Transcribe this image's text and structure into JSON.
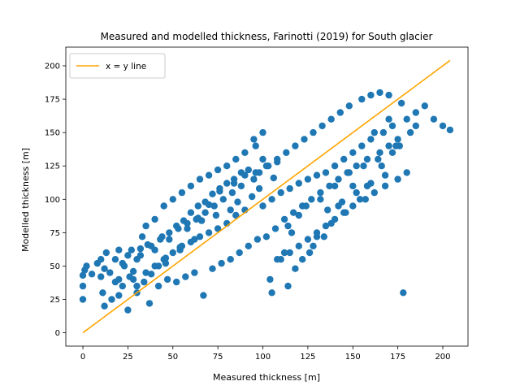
{
  "chart_data": {
    "type": "scatter",
    "title": "Measured and modelled thickness, Farinotti (2019) for South glacier",
    "xlabel": "Measured thickness [m]",
    "ylabel": "Modelled thickness [m]",
    "xlim": [
      -9.5,
      214
    ],
    "ylim": [
      -10,
      214
    ],
    "xticks": [
      0,
      25,
      50,
      75,
      100,
      125,
      150,
      175,
      200
    ],
    "yticks": [
      0,
      25,
      50,
      75,
      100,
      125,
      150,
      175,
      200
    ],
    "legend": {
      "placement": "top-left",
      "label": "x = y line"
    },
    "colors": {
      "points": "#1f77b4",
      "line": "#ffa500"
    },
    "series": [
      {
        "kind": "line",
        "x": [
          0,
          204
        ],
        "y": [
          0,
          204
        ]
      },
      {
        "kind": "scatter",
        "x": [
          0,
          0,
          0,
          1,
          2,
          5,
          8,
          10,
          10,
          11,
          12,
          13,
          15,
          16,
          18,
          20,
          20,
          22,
          23,
          25,
          25,
          27,
          28,
          30,
          30,
          32,
          33,
          35,
          35,
          37,
          38,
          40,
          40,
          42,
          43,
          45,
          45,
          47,
          48,
          50,
          50,
          52,
          53,
          55,
          55,
          57,
          58,
          60,
          60,
          62,
          63,
          65,
          65,
          67,
          68,
          70,
          70,
          72,
          73,
          75,
          75,
          77,
          78,
          80,
          80,
          82,
          83,
          85,
          85,
          87,
          88,
          90,
          90,
          92,
          95,
          95,
          97,
          98,
          100,
          100,
          102,
          103,
          105,
          105,
          107,
          108,
          110,
          110,
          112,
          113,
          115,
          115,
          117,
          118,
          120,
          120,
          122,
          123,
          125,
          125,
          127,
          128,
          130,
          130,
          132,
          133,
          135,
          135,
          137,
          138,
          140,
          140,
          142,
          143,
          145,
          145,
          147,
          148,
          150,
          150,
          152,
          155,
          155,
          157,
          158,
          160,
          160,
          162,
          165,
          165,
          167,
          168,
          170,
          170,
          172,
          175,
          175,
          177,
          180,
          180,
          182,
          185,
          185,
          190,
          195,
          200,
          204,
          12,
          18,
          22,
          28,
          32,
          36,
          40,
          44,
          48,
          52,
          56,
          60,
          64,
          68,
          72,
          76,
          80,
          84,
          88,
          92,
          96,
          100,
          104,
          108,
          112,
          116,
          120,
          124,
          128,
          132,
          136,
          140,
          144,
          148,
          152,
          156,
          160,
          164,
          168,
          172,
          176,
          20,
          26,
          34,
          42,
          46,
          54,
          62,
          66,
          74,
          82,
          86,
          94,
          98,
          106,
          114,
          118,
          126,
          134,
          138,
          146,
          154,
          158,
          166,
          174,
          178,
          30,
          38,
          46,
          54,
          58,
          64,
          70,
          76,
          84,
          90,
          96,
          102,
          108,
          114,
          122,
          130,
          142,
          150,
          162,
          170
        ],
        "y": [
          25,
          35,
          43,
          47,
          50,
          44,
          52,
          55,
          42,
          30,
          20,
          60,
          45,
          25,
          55,
          40,
          62,
          35,
          50,
          58,
          17,
          62,
          40,
          55,
          30,
          63,
          72,
          45,
          80,
          22,
          65,
          50,
          85,
          35,
          70,
          55,
          95,
          40,
          75,
          60,
          100,
          38,
          78,
          65,
          105,
          42,
          82,
          68,
          110,
          45,
          85,
          72,
          115,
          28,
          90,
          75,
          118,
          48,
          95,
          78,
          122,
          52,
          100,
          82,
          125,
          55,
          105,
          88,
          130,
          60,
          110,
          92,
          135,
          65,
          115,
          145,
          70,
          120,
          95,
          150,
          72,
          125,
          100,
          30,
          78,
          130,
          105,
          55,
          85,
          135,
          108,
          60,
          90,
          140,
          112,
          65,
          95,
          145,
          115,
          70,
          100,
          150,
          118,
          75,
          105,
          155,
          120,
          80,
          110,
          160,
          125,
          85,
          115,
          165,
          130,
          90,
          120,
          170,
          135,
          95,
          125,
          175,
          140,
          100,
          130,
          178,
          145,
          105,
          135,
          180,
          150,
          110,
          140,
          178,
          155,
          115,
          145,
          172,
          160,
          120,
          150,
          165,
          155,
          170,
          160,
          155,
          152,
          48,
          38,
          52,
          46,
          58,
          66,
          62,
          72,
          70,
          80,
          84,
          90,
          95,
          98,
          104,
          108,
          112,
          115,
          120,
          122,
          140,
          130,
          40,
          55,
          60,
          75,
          88,
          95,
          65,
          100,
          92,
          110,
          98,
          120,
          105,
          125,
          112,
          130,
          118,
          135,
          140,
          28,
          42,
          38,
          50,
          56,
          62,
          70,
          84,
          88,
          92,
          98,
          102,
          108,
          116,
          35,
          48,
          60,
          72,
          82,
          90,
          100,
          110,
          125,
          140,
          30,
          35,
          44,
          52,
          64,
          78,
          86,
          96,
          106,
          112,
          118,
          120,
          125,
          128,
          80,
          55,
          72,
          95,
          110,
          150,
          160
        ]
      }
    ]
  }
}
